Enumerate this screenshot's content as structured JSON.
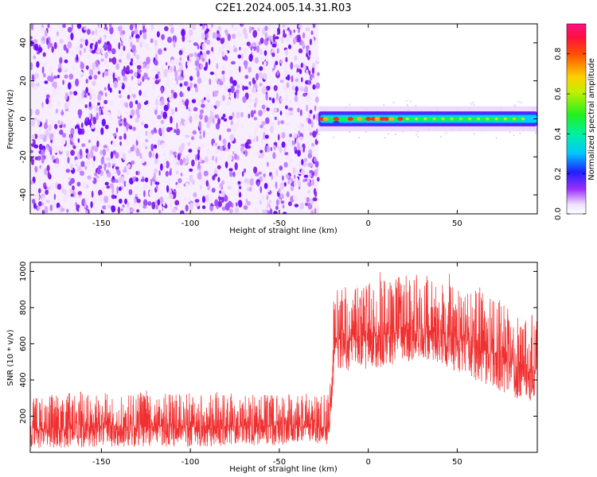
{
  "title": "C2E1.2024.005.14.31.R03",
  "chart_data": [
    {
      "type": "heatmap",
      "xlabel": "Height of straight line (km)",
      "ylabel": "Frequency (Hz)",
      "xlim": [
        -190,
        95
      ],
      "ylim": [
        -50,
        50
      ],
      "x_ticks": [
        -150,
        -100,
        -50,
        0,
        50
      ],
      "y_ticks": [
        -40,
        -20,
        0,
        20,
        40
      ],
      "noise_region_end_x": -28,
      "signal_band": {
        "x_start": -28,
        "x_end": 95,
        "center_y": 0,
        "half_width_hz": 3
      },
      "grid": false,
      "colorbar": {
        "label": "Normalized spectral amplitude",
        "ticks": [
          0.0,
          0.2,
          0.4,
          0.6,
          0.8
        ],
        "range": [
          0,
          0.95
        ]
      }
    },
    {
      "type": "line",
      "xlabel": "Height of straight line (km)",
      "ylabel": "SNR (10 * v/v)",
      "xlim": [
        -190,
        95
      ],
      "ylim": [
        0,
        1050
      ],
      "x_ticks": [
        -150,
        -100,
        -50,
        0,
        50
      ],
      "y_ticks": [
        200,
        400,
        600,
        800,
        1000
      ],
      "color": "#f03030",
      "grid": false,
      "envelope": [
        {
          "x": -190,
          "low": 20,
          "high": 300
        },
        {
          "x": -150,
          "low": 30,
          "high": 330
        },
        {
          "x": -100,
          "low": 30,
          "high": 320
        },
        {
          "x": -60,
          "low": 40,
          "high": 320
        },
        {
          "x": -22,
          "low": 40,
          "high": 310
        },
        {
          "x": -19,
          "low": 450,
          "high": 900
        },
        {
          "x": 0,
          "low": 450,
          "high": 950
        },
        {
          "x": 30,
          "low": 520,
          "high": 1000
        },
        {
          "x": 60,
          "low": 400,
          "high": 900
        },
        {
          "x": 95,
          "low": 250,
          "high": 750
        }
      ]
    }
  ]
}
